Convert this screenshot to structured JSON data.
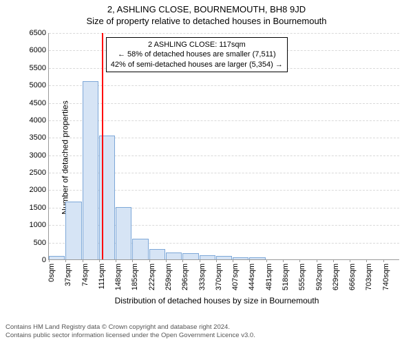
{
  "title_line1": "2, ASHLING CLOSE, BOURNEMOUTH, BH8 9JD",
  "title_line2": "Size of property relative to detached houses in Bournemouth",
  "chart": {
    "type": "histogram",
    "y_axis_label": "Number of detached properties",
    "x_axis_label": "Distribution of detached houses by size in Bournemouth",
    "ymax": 6500,
    "ytick_step": 500,
    "x_bin_width_sqm": 37,
    "x_label_step_sqm": 37,
    "x_label_count": 21,
    "bar_fill": "#d6e4f5",
    "bar_stroke": "#7ca7d8",
    "grid_color": "#d9d9d9",
    "background": "#ffffff",
    "values": [
      100,
      1650,
      5100,
      3550,
      1500,
      600,
      300,
      200,
      180,
      120,
      100,
      60,
      50,
      0,
      0,
      0,
      0,
      0,
      0,
      0,
      0
    ],
    "marker": {
      "color": "#ff0000",
      "position_sqm": 117
    }
  },
  "callout": {
    "line1": "2 ASHLING CLOSE: 117sqm",
    "line2": "← 58% of detached houses are smaller (7,511)",
    "line3": "42% of semi-detached houses are larger (5,354) →"
  },
  "footer": {
    "line1": "Contains HM Land Registry data © Crown copyright and database right 2024.",
    "line2": "Contains public sector information licensed under the Open Government Licence v3.0."
  }
}
